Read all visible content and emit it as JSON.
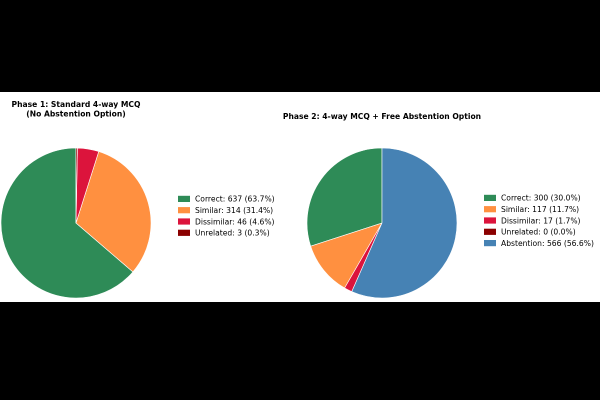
{
  "chart_data": [
    {
      "type": "pie",
      "title": "Phase 1: Standard 4-way MCQ\n(No Abstention Option)",
      "start_angle": 90,
      "direction": "counterclockwise",
      "legend_position": "right",
      "slices": [
        {
          "label": "Correct: 637 (63.7%)",
          "value": 637,
          "percent": 63.7,
          "color": "#2e8b57"
        },
        {
          "label": "Similar: 314 (31.4%)",
          "value": 314,
          "percent": 31.4,
          "color": "#ff9040"
        },
        {
          "label": "Dissimilar: 46 (4.6%)",
          "value": 46,
          "percent": 4.6,
          "color": "#dc143c"
        },
        {
          "label": "Unrelated: 3 (0.3%)",
          "value": 3,
          "percent": 0.3,
          "color": "#8b0000"
        }
      ]
    },
    {
      "type": "pie",
      "title": "Phase 2: 4-way MCQ + Free Abstention Option",
      "start_angle": 90,
      "direction": "counterclockwise",
      "legend_position": "right",
      "slices": [
        {
          "label": "Correct: 300 (30.0%)",
          "value": 300,
          "percent": 30.0,
          "color": "#2e8b57"
        },
        {
          "label": "Similar: 117 (11.7%)",
          "value": 117,
          "percent": 11.7,
          "color": "#ff9040"
        },
        {
          "label": "Dissimilar: 17 (1.7%)",
          "value": 17,
          "percent": 1.7,
          "color": "#dc143c"
        },
        {
          "label": "Unrelated: 0 (0.0%)",
          "value": 0,
          "percent": 0.0,
          "color": "#8b0000"
        },
        {
          "label": "Abstention: 566 (56.6%)",
          "value": 566,
          "percent": 56.6,
          "color": "#4682b4"
        }
      ]
    }
  ]
}
